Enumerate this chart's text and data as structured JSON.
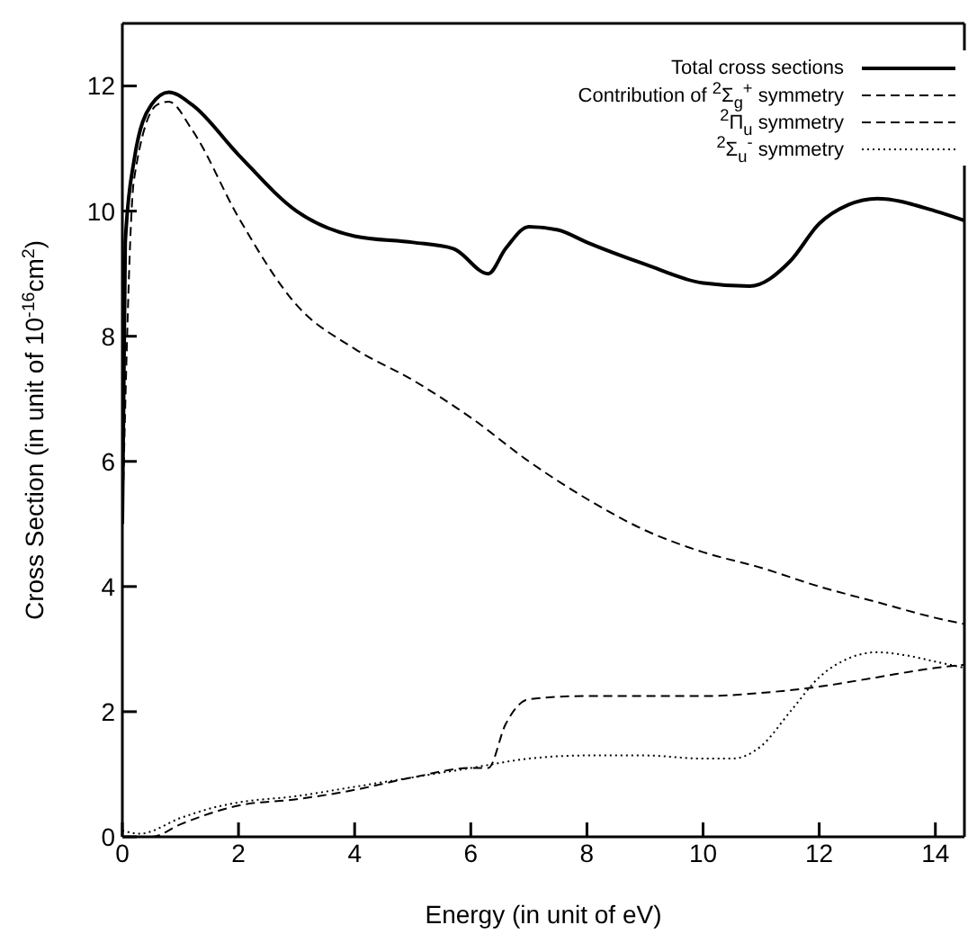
{
  "chart_data": {
    "type": "line",
    "xlabel": "Energy (in unit of eV)",
    "ylabel": "Cross Section (in unit of 10$^{-16}$cm$^{2}$)",
    "xlim": [
      0,
      14.5
    ],
    "xticks": [
      0,
      2,
      4,
      6,
      8,
      10,
      12,
      14
    ],
    "ylim": [
      0,
      13
    ],
    "yticks": [
      0,
      2,
      4,
      6,
      8,
      10,
      12
    ],
    "legend": "top right",
    "marker": "none",
    "series": [
      {
        "name": "Total cross sections",
        "color": "#000000",
        "line_style": "solid",
        "x": [
          0,
          0.05,
          0.2,
          0.5,
          0.8,
          1.2,
          2,
          3,
          4,
          5,
          5.7,
          6.3,
          6.6,
          7,
          7.5,
          8,
          9,
          10,
          10.8,
          11.5,
          12,
          12.5,
          13,
          14,
          14.5
        ],
        "values": [
          5,
          9.5,
          10.8,
          11.7,
          11.9,
          11.7,
          10.9,
          10,
          9.6,
          9.5,
          9.4,
          9,
          9.4,
          9.75,
          9.7,
          9.5,
          9.15,
          8.85,
          8.8,
          9.2,
          9.8,
          10.1,
          10.2,
          10,
          9.85
        ]
      },
      {
        "name": "Contribution of $^{2}$Σ$_{g}$$^{+}$ symmetry",
        "color": "#000000",
        "line_style": "dashed",
        "x": [
          0,
          0.2,
          0.6,
          0.8,
          1.2,
          2,
          3,
          4,
          5,
          6,
          7,
          8,
          9,
          10,
          11,
          12,
          13,
          14,
          14.5
        ],
        "values": [
          5,
          10.5,
          11.7,
          11.75,
          11.3,
          9.9,
          8.5,
          7.8,
          7.3,
          6.7,
          6,
          5.4,
          4.9,
          4.55,
          4.3,
          4,
          3.75,
          3.5,
          3.4
        ]
      },
      {
        "name": "$^{2}$Π$_{u}$ symmetry",
        "color": "#000000",
        "line_style": "dashed",
        "x": [
          0,
          0.5,
          1,
          2,
          3,
          4,
          5,
          6,
          6.3,
          6.6,
          7,
          8,
          9,
          10,
          11,
          12,
          13,
          14,
          14.5
        ],
        "values": [
          0,
          0,
          0.2,
          0.5,
          0.6,
          0.75,
          0.95,
          1.1,
          1.1,
          1.8,
          2.2,
          2.25,
          2.25,
          2.25,
          2.3,
          2.4,
          2.55,
          2.7,
          2.75
        ]
      },
      {
        "name": "$^{2}$Σ$_{u}$$^{-}$ symmetry",
        "color": "#000000",
        "line_style": "dotted",
        "x": [
          0,
          0.3,
          1,
          1.5,
          2,
          3,
          4,
          5,
          6,
          7,
          8,
          9,
          10,
          10.5,
          11,
          11.5,
          12,
          12.5,
          13,
          13.5,
          14,
          14.5
        ],
        "values": [
          0.1,
          0.05,
          0.3,
          0.45,
          0.55,
          0.65,
          0.8,
          0.95,
          1.1,
          1.25,
          1.3,
          1.3,
          1.25,
          1.25,
          1.45,
          2,
          2.55,
          2.85,
          2.95,
          2.9,
          2.8,
          2.7
        ]
      }
    ]
  }
}
